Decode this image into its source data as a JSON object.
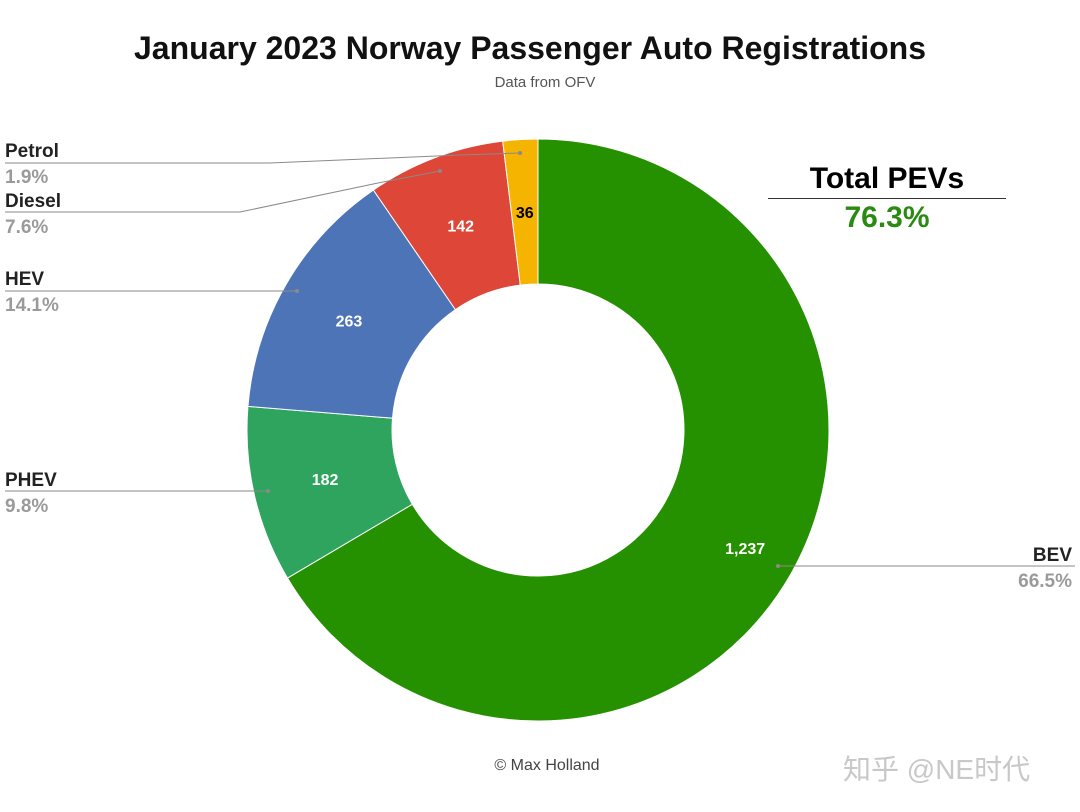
{
  "header": {
    "title": "January 2023 Norway Passenger Auto Registrations",
    "subtitle": "Data from OFV"
  },
  "callout": {
    "title": "Total PEVs",
    "value": "76.3%"
  },
  "footer": {
    "credit": "© Max Holland",
    "watermark": "知乎 @NE时代"
  },
  "chart_data": {
    "type": "pie",
    "donut": true,
    "title": "January 2023 Norway Passenger Auto Registrations",
    "subtitle": "Data from OFV",
    "slices": [
      {
        "label": "BEV",
        "value": 1237,
        "value_label": "1,237",
        "percent": "66.5%",
        "color": "#259100"
      },
      {
        "label": "PHEV",
        "value": 182,
        "value_label": "182",
        "percent": "9.8%",
        "color": "#2ea45f"
      },
      {
        "label": "HEV",
        "value": 263,
        "value_label": "263",
        "percent": "14.1%",
        "color": "#4d74b6"
      },
      {
        "label": "Diesel",
        "value": 142,
        "value_label": "142",
        "percent": "7.6%",
        "color": "#de4637"
      },
      {
        "label": "Petrol",
        "value": 36,
        "value_label": "36",
        "percent": "1.9%",
        "color": "#f5b400"
      }
    ],
    "value_label_colors": {
      "light": "#ffffff",
      "dark": "#000000"
    }
  }
}
